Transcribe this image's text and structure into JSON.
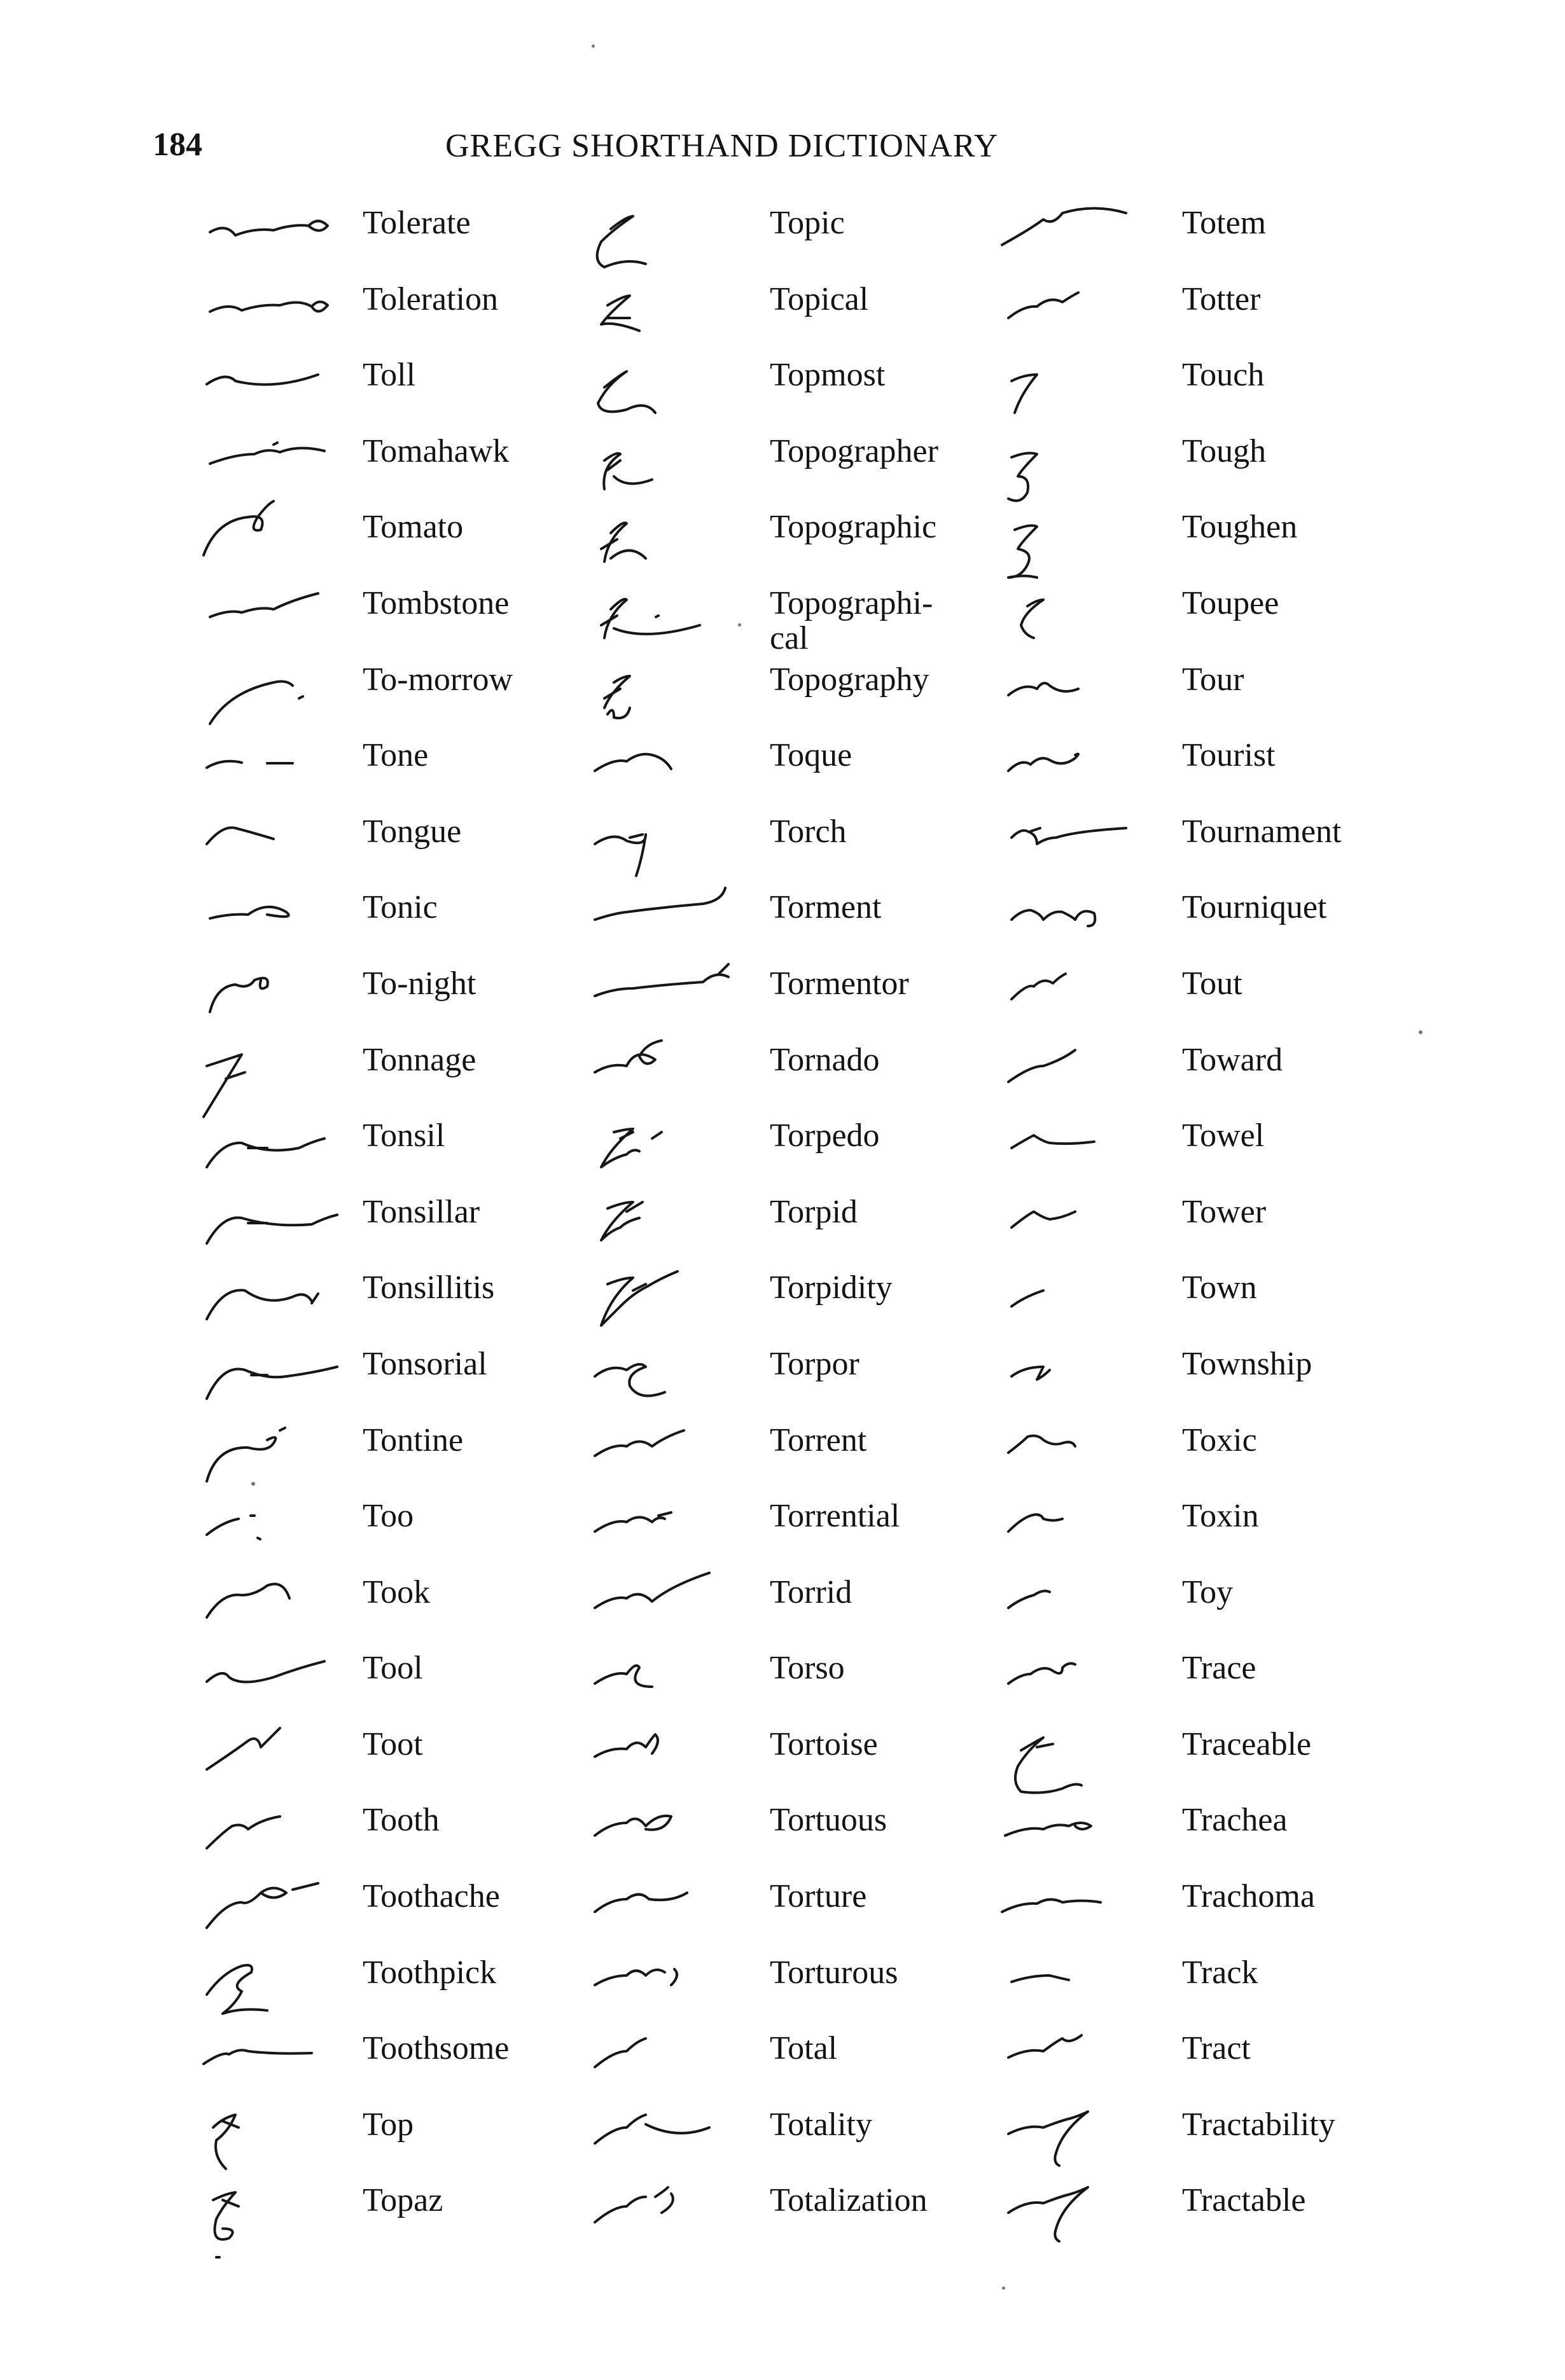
{
  "header": {
    "page_number": "184",
    "title": "GREGG SHORTHAND DICTIONARY"
  },
  "columns": [
    [
      {
        "word": "Tolerate"
      },
      {
        "word": "Toleration"
      },
      {
        "word": "Toll"
      },
      {
        "word": "Tomahawk"
      },
      {
        "word": "Tomato"
      },
      {
        "word": "Tombstone"
      },
      {
        "word": "To-morrow"
      },
      {
        "word": "Tone"
      },
      {
        "word": "Tongue"
      },
      {
        "word": "Tonic"
      },
      {
        "word": "To-night"
      },
      {
        "word": "Tonnage"
      },
      {
        "word": "Tonsil"
      },
      {
        "word": "Tonsillar"
      },
      {
        "word": "Tonsillitis"
      },
      {
        "word": "Tonsorial"
      },
      {
        "word": "Tontine"
      },
      {
        "word": "Too"
      },
      {
        "word": "Took"
      },
      {
        "word": "Tool"
      },
      {
        "word": "Toot"
      },
      {
        "word": "Tooth"
      },
      {
        "word": "Toothache"
      },
      {
        "word": "Toothpick"
      },
      {
        "word": "Toothsome"
      },
      {
        "word": "Top"
      },
      {
        "word": "Topaz"
      }
    ],
    [
      {
        "word": "Topic"
      },
      {
        "word": "Topical"
      },
      {
        "word": "Topmost"
      },
      {
        "word": "Topographer"
      },
      {
        "word": "Topographic"
      },
      {
        "word": "Topographi-\n    cal"
      },
      {
        "word": "Topography"
      },
      {
        "word": "Toque"
      },
      {
        "word": "Torch"
      },
      {
        "word": "Torment"
      },
      {
        "word": "Tormentor"
      },
      {
        "word": "Tornado"
      },
      {
        "word": "Torpedo"
      },
      {
        "word": "Torpid"
      },
      {
        "word": "Torpidity"
      },
      {
        "word": "Torpor"
      },
      {
        "word": "Torrent"
      },
      {
        "word": "Torrential"
      },
      {
        "word": "Torrid"
      },
      {
        "word": "Torso"
      },
      {
        "word": "Tortoise"
      },
      {
        "word": "Tortuous"
      },
      {
        "word": "Torture"
      },
      {
        "word": "Torturous"
      },
      {
        "word": "Total"
      },
      {
        "word": "Totality"
      },
      {
        "word": "Totalization"
      }
    ],
    [
      {
        "word": "Totem"
      },
      {
        "word": "Totter"
      },
      {
        "word": "Touch"
      },
      {
        "word": "Tough"
      },
      {
        "word": "Toughen"
      },
      {
        "word": "Toupee"
      },
      {
        "word": "Tour"
      },
      {
        "word": "Tourist"
      },
      {
        "word": "Tournament"
      },
      {
        "word": "Tourniquet"
      },
      {
        "word": "Tout"
      },
      {
        "word": "Toward"
      },
      {
        "word": "Towel"
      },
      {
        "word": "Tower"
      },
      {
        "word": "Town"
      },
      {
        "word": "Township"
      },
      {
        "word": "Toxic"
      },
      {
        "word": "Toxin"
      },
      {
        "word": "Toy"
      },
      {
        "word": "Trace"
      },
      {
        "word": "Traceable"
      },
      {
        "word": "Trachea"
      },
      {
        "word": "Trachoma"
      },
      {
        "word": "Track"
      },
      {
        "word": "Tract"
      },
      {
        "word": "Tractability"
      },
      {
        "word": "Tractable"
      }
    ]
  ]
}
